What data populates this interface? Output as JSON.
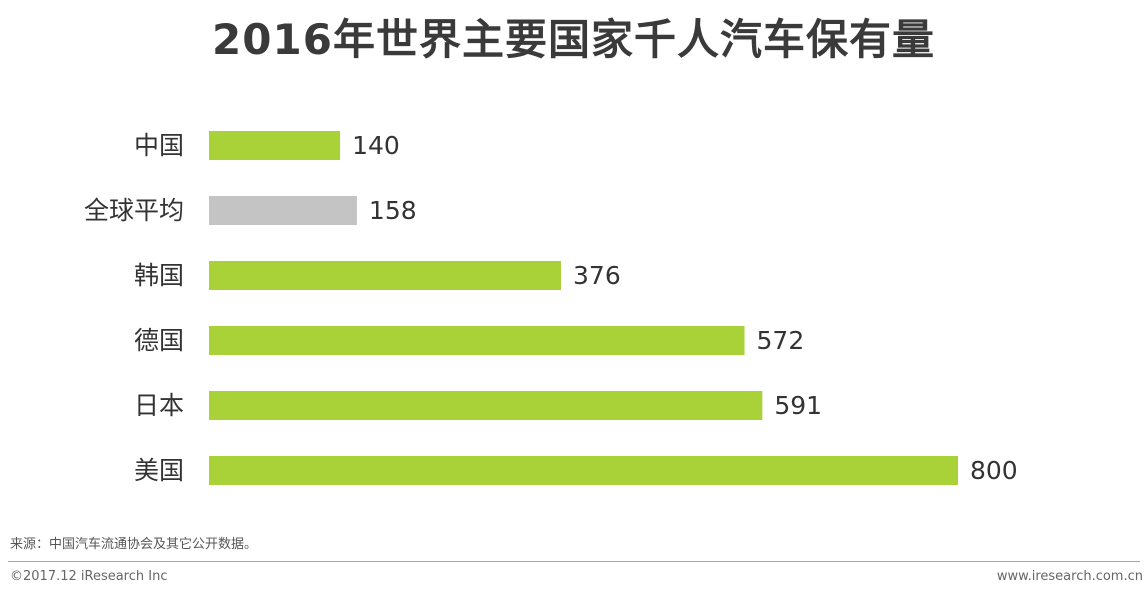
{
  "chart_data": {
    "type": "bar",
    "orientation": "horizontal",
    "title": "2016年世界主要国家千人汽车保有量",
    "categories": [
      "中国",
      "全球平均",
      "韩国",
      "德国",
      "日本",
      "美国"
    ],
    "values": [
      140,
      158,
      376,
      572,
      591,
      800
    ],
    "value_labels": [
      "140",
      "158",
      "376",
      "572",
      "591",
      "800"
    ],
    "bar_colors": [
      "#a8d237",
      "#c4c4c4",
      "#a8d237",
      "#a8d237",
      "#a8d237",
      "#a8d237"
    ],
    "xlim": [
      0,
      800
    ],
    "grid": false,
    "legend": "none"
  },
  "footer": {
    "source": "来源：中国汽车流通协会及其它公开数据。",
    "copyright": "©2017.12 iResearch Inc",
    "website": "www.iresearch.com.cn"
  }
}
